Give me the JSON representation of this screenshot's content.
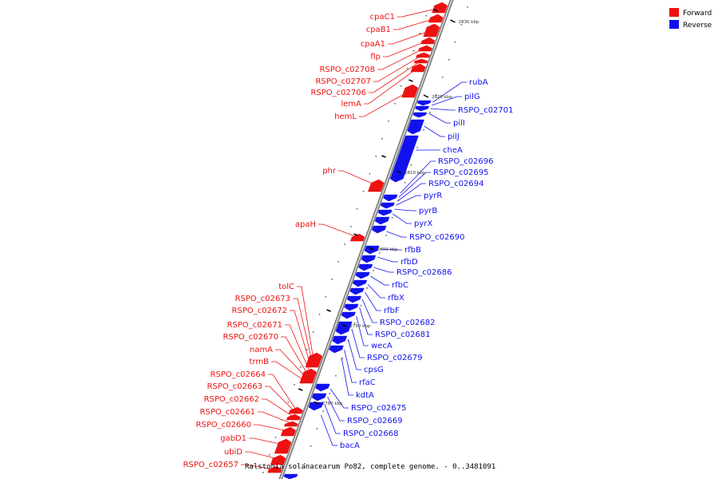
{
  "legend": {
    "forward_label": "Forward",
    "reverse_label": "Reverse",
    "forward_color": "#ee1111",
    "reverse_color": "#1111ee"
  },
  "caption": "Ralstonia solanacearum Po82, complete genome. - 0..3481091",
  "scale_labels": [
    "2830 kbp",
    "2820 kbp",
    "2810 kbp",
    "2800 kbp",
    "2790 kbp",
    "2780 kbp"
  ],
  "forward_genes": [
    "cpaC1",
    "cpaB1",
    "cpaA1",
    "flp",
    "RSPO_c02708",
    "RSPO_c02707",
    "RSPO_c02706",
    "lemA",
    "hemL",
    "phr",
    "apaH",
    "tolC",
    "RSPO_c02673",
    "RSPO_c02672",
    "RSPO_c02671",
    "RSPO_c02670",
    "namA",
    "trmB",
    "RSPO_c02664",
    "RSPO_c02663",
    "RSPO_c02662",
    "RSPO_c02661",
    "RSPO_c02660",
    "gabD1",
    "ubiD",
    "RSPO_c02657"
  ],
  "reverse_genes": [
    "rubA",
    "pilG",
    "RSPO_c02701",
    "pilI",
    "pilJ",
    "cheA",
    "RSPO_c02696",
    "RSPO_c02695",
    "RSPO_c02694",
    "pyrR",
    "pyrB",
    "pyrX",
    "RSPO_c02690",
    "rfbB",
    "rfbD",
    "RSPO_c02686",
    "rfbC",
    "rfbX",
    "rfbF",
    "RSPO_c02682",
    "RSPO_c02681",
    "wecA",
    "RSPO_c02679",
    "cpsG",
    "rfaC",
    "kdtA",
    "RSPO_c02675",
    "RSPO_c02669",
    "RSPO_c02668",
    "bacA"
  ]
}
